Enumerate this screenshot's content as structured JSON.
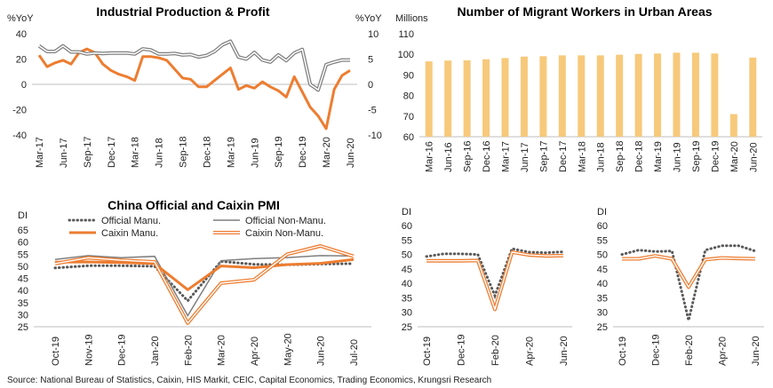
{
  "source": "Source: National Bureau of Statistics, Caixin, HIS Markit, CEIC, Capital Economics, Trading Economics, Krungsri Research",
  "colors": {
    "orange": "#ed7d31",
    "gray": "#7f7f7f",
    "dotted": "#595959",
    "bar": "#f7c97b",
    "light_orange": "#f4b183"
  },
  "chart_data": [
    {
      "type": "line",
      "title": "Industrial Production & Profit",
      "left_unit": "%YoY",
      "right_unit": "%YoY",
      "left_ticks": [
        "40",
        "20",
        "0",
        "-20",
        "-40"
      ],
      "right_ticks": [
        "10",
        "5",
        "0",
        "-5",
        "-10"
      ],
      "ylim_left": [
        -40,
        40
      ],
      "ylim_right": [
        -10,
        10
      ],
      "x_ticks": [
        "Mar-17",
        "Jun-17",
        "Sep-17",
        "Dec-17",
        "Mar-18",
        "Jun-18",
        "Sep-18",
        "Dec-18",
        "Mar-19",
        "Jun-19",
        "Sep-19",
        "Dec-19",
        "Mar-20",
        "Jun-20"
      ],
      "x_tick_index": [
        0,
        3,
        6,
        9,
        12,
        15,
        18,
        21,
        24,
        27,
        30,
        33,
        36,
        39
      ],
      "series": [
        {
          "axis": "left",
          "color": "#ed7d31",
          "values": [
            23,
            14,
            17,
            19,
            16,
            25,
            28,
            25,
            16,
            11,
            8,
            6,
            3,
            22,
            22,
            21,
            19,
            12,
            5,
            4,
            -2,
            -2,
            3,
            8,
            13,
            -4,
            -1,
            -3,
            2,
            -2,
            -5,
            -10,
            6,
            -6,
            -18,
            -25,
            -35,
            -4,
            7,
            11
          ]
        },
        {
          "axis": "right",
          "color": "#7f7f7f",
          "double": true,
          "values": [
            7.6,
            6.5,
            6.5,
            7.6,
            6.4,
            6.4,
            6.0,
            6.2,
            6.1,
            6.2,
            6.2,
            6.2,
            6.0,
            7.0,
            6.8,
            6.0,
            6.0,
            6.1,
            5.8,
            5.9,
            5.4,
            5.7,
            6.5,
            7.8,
            8.5,
            5.4,
            5.0,
            6.3,
            4.8,
            4.4,
            5.8,
            4.7,
            6.2,
            6.9,
            0.0,
            -1.1,
            3.9,
            4.4,
            4.8,
            4.8
          ]
        }
      ]
    },
    {
      "type": "bar",
      "title": "Number of Migrant Workers in Urban Areas",
      "unit": "Millions",
      "ylim": [
        60,
        110
      ],
      "y_ticks": [
        "110",
        "100",
        "90",
        "80",
        "70",
        "60"
      ],
      "categories": [
        "Mar-16",
        "Jun-16",
        "Sep-16",
        "Dec-16",
        "Mar-17",
        "Jun-17",
        "Sep-17",
        "Dec-17",
        "Mar-18",
        "Jun-18",
        "Sep-18",
        "Dec-18",
        "Mar-19",
        "Jun-19",
        "Sep-19",
        "Dec-19",
        "Mar-20",
        "Jun-20"
      ],
      "values": [
        96.6,
        97.0,
        97.1,
        97.6,
        98.2,
        98.9,
        99.1,
        99.5,
        99.5,
        99.5,
        99.8,
        100.2,
        100.4,
        100.8,
        100.8,
        100.4,
        71.0,
        98.4
      ],
      "color": "#f7c97b"
    },
    {
      "type": "line",
      "title": "China Official and Caixin PMI",
      "unit": "DI",
      "ylim": [
        25,
        65
      ],
      "y_ticks": [
        "65",
        "60",
        "55",
        "50",
        "45",
        "40",
        "35",
        "30",
        "25"
      ],
      "categories": [
        "Oct-19",
        "Nov-19",
        "Dec-19",
        "Jan-20",
        "Feb-20",
        "Mar-20",
        "Apr-20",
        "May-20",
        "Jun-20",
        "Jul-20"
      ],
      "series": [
        {
          "name": "Official Manu.",
          "style": "dotted",
          "values": [
            49.3,
            50.2,
            50.2,
            50.0,
            35.7,
            52.0,
            50.8,
            50.6,
            50.9,
            51.1
          ]
        },
        {
          "name": "Official Non-Manu.",
          "style": "gray",
          "values": [
            52.8,
            54.4,
            53.5,
            54.1,
            29.6,
            52.3,
            53.2,
            53.6,
            54.4,
            54.2
          ]
        },
        {
          "name": "Caixin Manu.",
          "style": "orange",
          "values": [
            51.7,
            51.8,
            51.5,
            51.1,
            40.3,
            50.1,
            49.4,
            50.7,
            51.2,
            52.8
          ]
        },
        {
          "name": "Caixin Non-Manu.",
          "style": "double-orange",
          "values": [
            51.1,
            53.5,
            52.5,
            51.8,
            26.5,
            43.0,
            44.4,
            55.0,
            58.4,
            54.1
          ]
        }
      ]
    },
    {
      "type": "line",
      "unit": "DI",
      "ylim": [
        25,
        60
      ],
      "y_ticks": [
        "60",
        "55",
        "50",
        "45",
        "40",
        "35",
        "30",
        "25"
      ],
      "x_ticks": [
        "Oct-19",
        "Dec-19",
        "Feb-20",
        "Apr-20",
        "Jun-20"
      ],
      "x_tick_index": [
        0,
        2,
        4,
        6,
        8
      ],
      "series": [
        {
          "style": "dotted",
          "values": [
            49.3,
            50.2,
            50.2,
            50.0,
            35.7,
            52.0,
            50.8,
            50.6,
            50.9
          ]
        },
        {
          "style": "double-orange",
          "values": [
            47.8,
            47.8,
            47.8,
            47.9,
            31.0,
            50.8,
            49.8,
            49.5,
            49.6
          ]
        }
      ]
    },
    {
      "type": "line",
      "unit": "DI",
      "ylim": [
        25,
        60
      ],
      "y_ticks": [
        "60",
        "55",
        "50",
        "45",
        "40",
        "35",
        "30",
        "25"
      ],
      "x_ticks": [
        "Oct-19",
        "Dec-19",
        "Feb-20",
        "Apr-20",
        "Jun-20"
      ],
      "x_tick_index": [
        0,
        2,
        4,
        6,
        8
      ],
      "series": [
        {
          "style": "dotted",
          "values": [
            50.0,
            51.5,
            51.0,
            51.2,
            27.2,
            51.5,
            53.0,
            53.0,
            51.2
          ]
        },
        {
          "style": "double-orange",
          "values": [
            48.5,
            48.5,
            49.5,
            48.5,
            38.7,
            48.2,
            48.8,
            48.6,
            48.5
          ]
        }
      ]
    }
  ]
}
